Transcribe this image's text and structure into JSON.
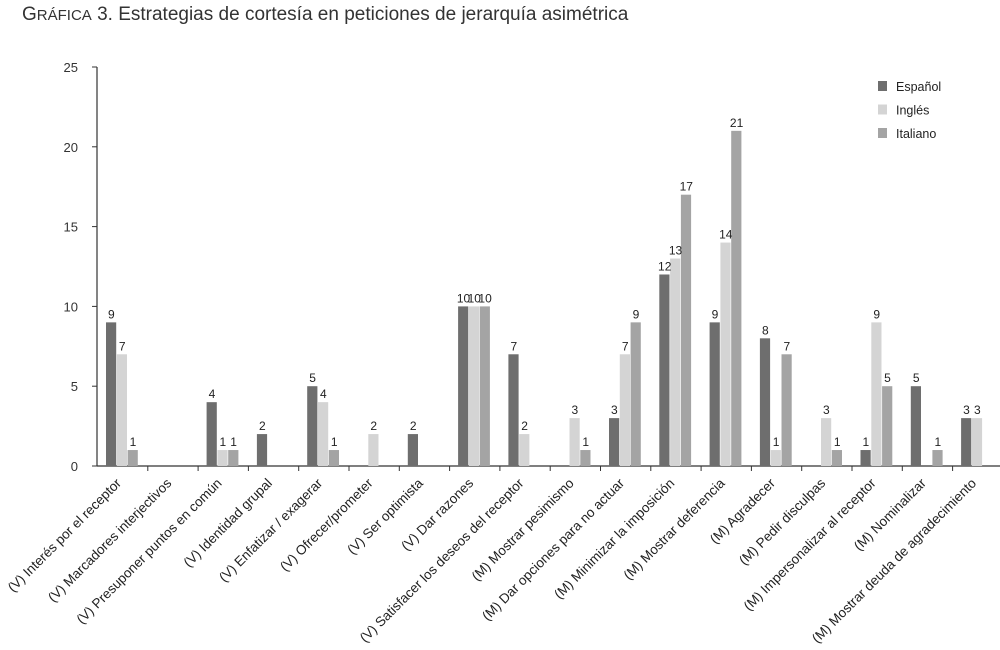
{
  "title": {
    "prefix": "Gráfica 3.",
    "text": "Estrategias de cortesía en peticiones de jerarquía asimétrica"
  },
  "chart_data": {
    "type": "bar",
    "title": "Gráfica 3. Estrategias de cortesía en peticiones de jerarquía asimétrica",
    "categories": [
      "(V) Interés por el receptor",
      "(V) Marcadores interjectivos",
      "(V) Presuponer puntos en común",
      "(V) Identidad grupal",
      "(V) Enfatizar / exagerar",
      "(V) Ofrecer/prometer",
      "(V) Ser optimista",
      "(V) Dar razones",
      "(V) Satisfacer los deseos del receptor",
      "(M) Mostrar pesimismo",
      "(M) Dar opciones para no actuar",
      "(M) Minimizar la imposición",
      "(M) Mostrar deferencia",
      "(M) Agradecer",
      "(M) Pedir disculpas",
      "(M) Impersonalizar al receptor",
      "(M) Nominalizar",
      "(M) Mostrar deuda de agradecimiento"
    ],
    "series": [
      {
        "name": "Español",
        "color": "#6e6e6e",
        "values": [
          9,
          0,
          4,
          2,
          5,
          0,
          2,
          10,
          7,
          0,
          3,
          12,
          9,
          8,
          0,
          1,
          5,
          3
        ]
      },
      {
        "name": "Inglés",
        "color": "#d4d4d4",
        "values": [
          7,
          0,
          1,
          0,
          4,
          2,
          0,
          10,
          2,
          3,
          7,
          13,
          14,
          1,
          3,
          9,
          0,
          3
        ]
      },
      {
        "name": "Italiano",
        "color": "#a4a4a4",
        "values": [
          1,
          0,
          1,
          0,
          1,
          0,
          0,
          10,
          0,
          1,
          9,
          17,
          21,
          7,
          1,
          5,
          1,
          0
        ]
      }
    ],
    "ylim": [
      0,
      25
    ],
    "yticks": [
      0,
      5,
      10,
      15,
      20,
      25
    ],
    "legend_position": "top-right",
    "grid": false
  }
}
